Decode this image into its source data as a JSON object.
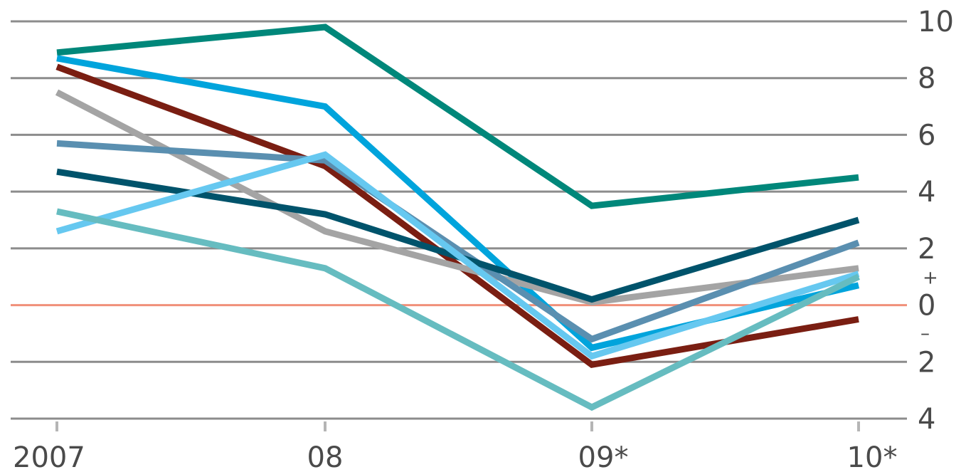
{
  "chart_data": {
    "type": "line",
    "categories": [
      "2007",
      "08",
      "09*",
      "10*"
    ],
    "ylim": [
      -4,
      10
    ],
    "yticks": [
      {
        "value": 10,
        "label": "10"
      },
      {
        "value": 8,
        "label": "8"
      },
      {
        "value": 6,
        "label": "6"
      },
      {
        "value": 4,
        "label": "4"
      },
      {
        "value": 2,
        "label": "2"
      },
      {
        "value": 0,
        "label": "0"
      },
      {
        "value": -2,
        "label": "2"
      },
      {
        "value": -4,
        "label": "4"
      }
    ],
    "sign_labels": {
      "plus": "+",
      "minus": "–"
    },
    "grid": true,
    "zero_line_color": "#f0907a",
    "grid_color": "#8c8c8c",
    "series": [
      {
        "color": "#00877a",
        "values": [
          8.9,
          9.8,
          3.5,
          4.5
        ]
      },
      {
        "color": "#00a4dc",
        "values": [
          8.7,
          7.0,
          -1.5,
          0.7
        ]
      },
      {
        "color": "#7a1e12",
        "values": [
          8.4,
          4.9,
          -2.1,
          -0.5
        ]
      },
      {
        "color": "#a4a4a4",
        "values": [
          7.5,
          2.6,
          0.1,
          1.3
        ]
      },
      {
        "color": "#5a8fb0",
        "values": [
          5.7,
          5.1,
          -1.2,
          2.2
        ]
      },
      {
        "color": "#00536b",
        "values": [
          4.7,
          3.2,
          0.2,
          3.0
        ]
      },
      {
        "color": "#66c8f0",
        "values": [
          2.6,
          5.3,
          -1.8,
          1.1
        ]
      },
      {
        "color": "#66bcc0",
        "values": [
          3.3,
          1.3,
          -3.6,
          1.0
        ]
      }
    ]
  }
}
